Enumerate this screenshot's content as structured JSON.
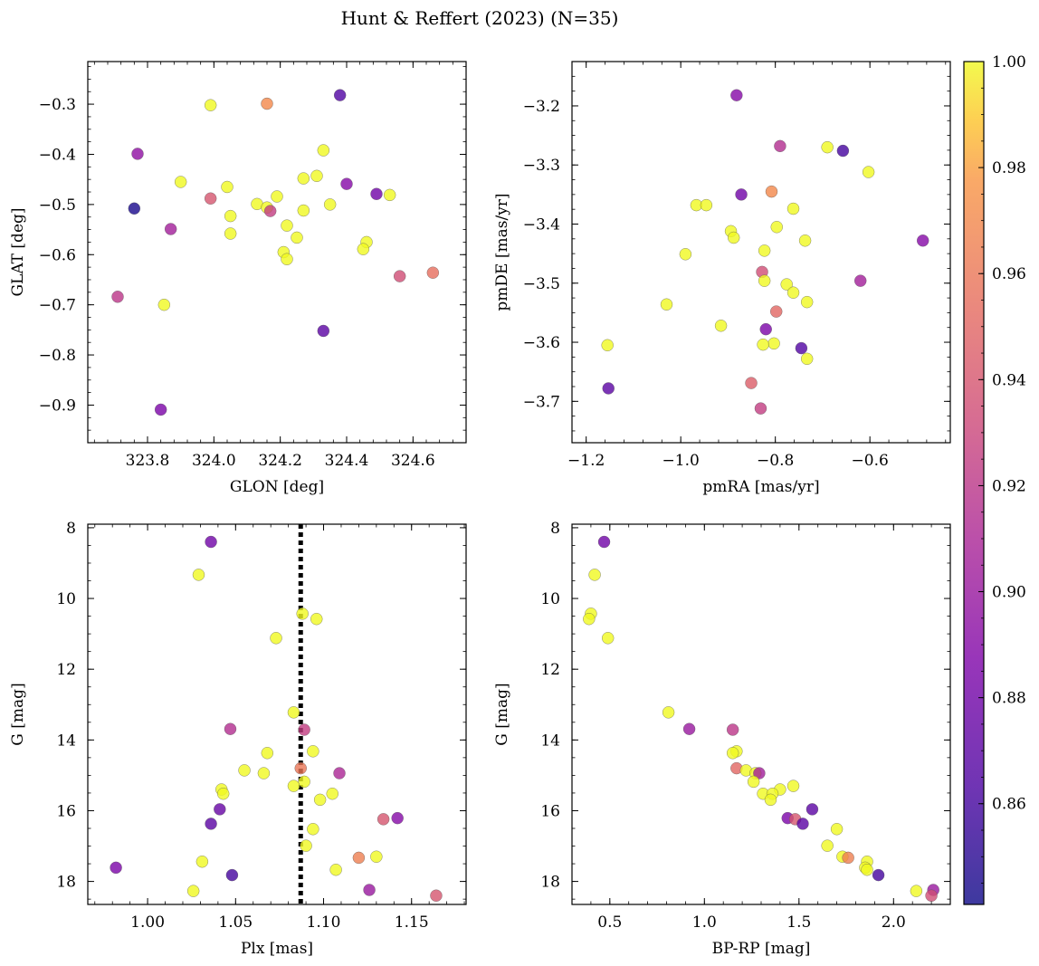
{
  "figure": {
    "title": "Hunt & Reffert (2023) (N=35)"
  },
  "colorbar": {
    "range": [
      0.841,
      1.0
    ],
    "ticks": [
      0.86,
      0.88,
      0.9,
      0.92,
      0.94,
      0.96,
      0.98,
      1.0
    ],
    "tick_labels": [
      "0.86",
      "0.88",
      "0.90",
      "0.92",
      "0.94",
      "0.96",
      "0.98",
      "1.00"
    ],
    "colormap": "plasma"
  },
  "chart_data": [
    {
      "type": "scatter",
      "xlabel": "GLON [deg]",
      "ylabel": "GLAT [deg]",
      "xlim": [
        323.62,
        324.76
      ],
      "ylim": [
        -0.975,
        -0.215
      ],
      "yinvert": false,
      "xticks": [
        323.8,
        324.0,
        324.2,
        324.4,
        324.6
      ],
      "xtick_labels": [
        "323.8",
        "324.0",
        "324.2",
        "324.4",
        "324.6"
      ],
      "yticks": [
        -0.9,
        -0.8,
        -0.7,
        -0.6,
        -0.5,
        -0.4,
        -0.3
      ],
      "ytick_labels": [
        "−0.9",
        "−0.8",
        "−0.7",
        "−0.6",
        "−0.5",
        "−0.4",
        "−0.3"
      ],
      "points": [
        {
          "x": 323.99,
          "y": -0.302,
          "c": 1.0
        },
        {
          "x": 324.16,
          "y": -0.299,
          "c": 0.97
        },
        {
          "x": 324.38,
          "y": -0.282,
          "c": 0.865
        },
        {
          "x": 323.77,
          "y": -0.399,
          "c": 0.895
        },
        {
          "x": 324.33,
          "y": -0.392,
          "c": 1.0
        },
        {
          "x": 323.9,
          "y": -0.455,
          "c": 1.0
        },
        {
          "x": 324.31,
          "y": -0.443,
          "c": 1.0
        },
        {
          "x": 324.27,
          "y": -0.448,
          "c": 1.0
        },
        {
          "x": 324.4,
          "y": -0.459,
          "c": 0.89
        },
        {
          "x": 324.04,
          "y": -0.465,
          "c": 1.0
        },
        {
          "x": 324.49,
          "y": -0.479,
          "c": 0.88
        },
        {
          "x": 324.53,
          "y": -0.481,
          "c": 1.0
        },
        {
          "x": 323.99,
          "y": -0.488,
          "c": 0.94
        },
        {
          "x": 324.19,
          "y": -0.484,
          "c": 1.0
        },
        {
          "x": 324.13,
          "y": -0.499,
          "c": 1.0
        },
        {
          "x": 324.35,
          "y": -0.5,
          "c": 1.0
        },
        {
          "x": 323.76,
          "y": -0.508,
          "c": 0.845
        },
        {
          "x": 324.16,
          "y": -0.506,
          "c": 1.0
        },
        {
          "x": 324.17,
          "y": -0.513,
          "c": 0.925
        },
        {
          "x": 324.27,
          "y": -0.512,
          "c": 1.0
        },
        {
          "x": 324.05,
          "y": -0.523,
          "c": 1.0
        },
        {
          "x": 324.22,
          "y": -0.542,
          "c": 1.0
        },
        {
          "x": 323.87,
          "y": -0.549,
          "c": 0.905
        },
        {
          "x": 324.05,
          "y": -0.558,
          "c": 1.0
        },
        {
          "x": 324.25,
          "y": -0.566,
          "c": 1.0
        },
        {
          "x": 324.46,
          "y": -0.575,
          "c": 1.0
        },
        {
          "x": 324.45,
          "y": -0.589,
          "c": 1.0
        },
        {
          "x": 324.21,
          "y": -0.595,
          "c": 1.0
        },
        {
          "x": 324.22,
          "y": -0.609,
          "c": 1.0
        },
        {
          "x": 324.56,
          "y": -0.643,
          "c": 0.935
        },
        {
          "x": 324.66,
          "y": -0.636,
          "c": 0.955
        },
        {
          "x": 323.71,
          "y": -0.684,
          "c": 0.92
        },
        {
          "x": 323.85,
          "y": -0.7,
          "c": 1.0
        },
        {
          "x": 324.33,
          "y": -0.752,
          "c": 0.87
        },
        {
          "x": 323.84,
          "y": -0.909,
          "c": 0.885
        }
      ]
    },
    {
      "type": "scatter",
      "xlabel": "pmRA [mas/yr]",
      "ylabel": "pmDE [mas/yr]",
      "xlim": [
        -1.23,
        -0.43
      ],
      "ylim": [
        -3.77,
        -3.125
      ],
      "yinvert": false,
      "xticks": [
        -1.2,
        -1.0,
        -0.8,
        -0.6
      ],
      "xtick_labels": [
        "−1.2",
        "−1.0",
        "−0.8",
        "−0.6"
      ],
      "yticks": [
        -3.7,
        -3.6,
        -3.5,
        -3.4,
        -3.3,
        -3.2
      ],
      "ytick_labels": [
        "−3.7",
        "−3.6",
        "−3.5",
        "−3.4",
        "−3.3",
        "−3.2"
      ],
      "points": [
        {
          "x": -0.882,
          "y": -3.182,
          "c": 0.89
        },
        {
          "x": -0.79,
          "y": -3.268,
          "c": 0.915
        },
        {
          "x": -0.69,
          "y": -3.27,
          "c": 1.0
        },
        {
          "x": -0.657,
          "y": -3.276,
          "c": 0.86
        },
        {
          "x": -0.603,
          "y": -3.312,
          "c": 1.0
        },
        {
          "x": -0.808,
          "y": -3.345,
          "c": 0.97
        },
        {
          "x": -0.872,
          "y": -3.35,
          "c": 0.88
        },
        {
          "x": -0.967,
          "y": -3.368,
          "c": 1.0
        },
        {
          "x": -0.946,
          "y": -3.368,
          "c": 1.0
        },
        {
          "x": -0.762,
          "y": -3.374,
          "c": 1.0
        },
        {
          "x": -0.797,
          "y": -3.405,
          "c": 1.0
        },
        {
          "x": -0.894,
          "y": -3.412,
          "c": 1.0
        },
        {
          "x": -0.888,
          "y": -3.423,
          "c": 1.0
        },
        {
          "x": -0.737,
          "y": -3.428,
          "c": 1.0
        },
        {
          "x": -0.488,
          "y": -3.428,
          "c": 0.89
        },
        {
          "x": -0.823,
          "y": -3.445,
          "c": 1.0
        },
        {
          "x": -0.99,
          "y": -3.451,
          "c": 1.0
        },
        {
          "x": -0.828,
          "y": -3.481,
          "c": 0.935
        },
        {
          "x": -0.823,
          "y": -3.496,
          "c": 1.0
        },
        {
          "x": -0.62,
          "y": -3.496,
          "c": 0.905
        },
        {
          "x": -0.776,
          "y": -3.502,
          "c": 1.0
        },
        {
          "x": -0.762,
          "y": -3.516,
          "c": 1.0
        },
        {
          "x": -0.733,
          "y": -3.532,
          "c": 1.0
        },
        {
          "x": -1.03,
          "y": -3.536,
          "c": 1.0
        },
        {
          "x": -0.798,
          "y": -3.548,
          "c": 0.95
        },
        {
          "x": -0.915,
          "y": -3.572,
          "c": 1.0
        },
        {
          "x": -0.82,
          "y": -3.578,
          "c": 0.885
        },
        {
          "x": -0.803,
          "y": -3.602,
          "c": 1.0
        },
        {
          "x": -0.826,
          "y": -3.604,
          "c": 1.0
        },
        {
          "x": -1.155,
          "y": -3.605,
          "c": 1.0
        },
        {
          "x": -0.745,
          "y": -3.61,
          "c": 0.865
        },
        {
          "x": -0.733,
          "y": -3.628,
          "c": 1.0
        },
        {
          "x": -0.851,
          "y": -3.669,
          "c": 0.945
        },
        {
          "x": -1.153,
          "y": -3.678,
          "c": 0.87
        },
        {
          "x": -0.831,
          "y": -3.712,
          "c": 0.925
        }
      ]
    },
    {
      "type": "scatter",
      "xlabel": "Plx [mas]",
      "ylabel": "G [mag]",
      "xlim": [
        0.966,
        1.181
      ],
      "ylim": [
        7.9,
        18.65
      ],
      "yinvert": true,
      "vline": 1.087,
      "xticks": [
        1.0,
        1.05,
        1.1,
        1.15
      ],
      "xtick_labels": [
        "1.00",
        "1.05",
        "1.10",
        "1.15"
      ],
      "yticks": [
        8,
        10,
        12,
        14,
        16,
        18
      ],
      "ytick_labels": [
        "8",
        "10",
        "12",
        "14",
        "16",
        "18"
      ],
      "points": [
        {
          "x": 1.036,
          "y": 8.4,
          "c": 0.88
        },
        {
          "x": 1.029,
          "y": 9.33,
          "c": 1.0
        },
        {
          "x": 1.088,
          "y": 10.43,
          "c": 1.0
        },
        {
          "x": 1.096,
          "y": 10.58,
          "c": 1.0
        },
        {
          "x": 1.073,
          "y": 11.12,
          "c": 1.0
        },
        {
          "x": 1.083,
          "y": 13.22,
          "c": 1.0
        },
        {
          "x": 1.047,
          "y": 13.69,
          "c": 0.915
        },
        {
          "x": 1.089,
          "y": 13.71,
          "c": 0.925
        },
        {
          "x": 1.094,
          "y": 14.32,
          "c": 1.0
        },
        {
          "x": 1.068,
          "y": 14.37,
          "c": 1.0
        },
        {
          "x": 1.087,
          "y": 14.8,
          "c": 0.96
        },
        {
          "x": 1.055,
          "y": 14.86,
          "c": 1.0
        },
        {
          "x": 1.066,
          "y": 14.94,
          "c": 1.0
        },
        {
          "x": 1.109,
          "y": 14.94,
          "c": 0.91
        },
        {
          "x": 1.089,
          "y": 15.18,
          "c": 1.0
        },
        {
          "x": 1.083,
          "y": 15.3,
          "c": 1.0
        },
        {
          "x": 1.042,
          "y": 15.4,
          "c": 1.0
        },
        {
          "x": 1.043,
          "y": 15.52,
          "c": 1.0
        },
        {
          "x": 1.105,
          "y": 15.52,
          "c": 1.0
        },
        {
          "x": 1.098,
          "y": 15.69,
          "c": 1.0
        },
        {
          "x": 1.041,
          "y": 15.96,
          "c": 0.875
        },
        {
          "x": 1.134,
          "y": 16.24,
          "c": 0.94
        },
        {
          "x": 1.142,
          "y": 16.21,
          "c": 0.89
        },
        {
          "x": 1.036,
          "y": 16.37,
          "c": 0.87
        },
        {
          "x": 1.094,
          "y": 16.52,
          "c": 1.0
        },
        {
          "x": 1.09,
          "y": 16.99,
          "c": 1.0
        },
        {
          "x": 1.13,
          "y": 17.3,
          "c": 1.0
        },
        {
          "x": 1.12,
          "y": 17.33,
          "c": 0.965
        },
        {
          "x": 1.031,
          "y": 17.44,
          "c": 1.0
        },
        {
          "x": 0.982,
          "y": 17.61,
          "c": 0.885
        },
        {
          "x": 1.107,
          "y": 17.67,
          "c": 1.0
        },
        {
          "x": 1.048,
          "y": 17.82,
          "c": 0.86
        },
        {
          "x": 1.126,
          "y": 18.24,
          "c": 0.9
        },
        {
          "x": 1.026,
          "y": 18.27,
          "c": 1.0
        },
        {
          "x": 1.164,
          "y": 18.4,
          "c": 0.94
        }
      ]
    },
    {
      "type": "scatter",
      "xlabel": "BP-RP [mag]",
      "ylabel": "G [mag]",
      "xlim": [
        0.3,
        2.3
      ],
      "ylim": [
        7.9,
        18.65
      ],
      "yinvert": true,
      "xticks": [
        0.5,
        1.0,
        1.5,
        2.0
      ],
      "xtick_labels": [
        "0.5",
        "1.0",
        "1.5",
        "2.0"
      ],
      "yticks": [
        8,
        10,
        12,
        14,
        16,
        18
      ],
      "ytick_labels": [
        "8",
        "10",
        "12",
        "14",
        "16",
        "18"
      ],
      "points": [
        {
          "x": 0.47,
          "y": 8.4,
          "c": 0.88
        },
        {
          "x": 0.42,
          "y": 9.33,
          "c": 1.0
        },
        {
          "x": 0.4,
          "y": 10.43,
          "c": 1.0
        },
        {
          "x": 0.39,
          "y": 10.58,
          "c": 1.0
        },
        {
          "x": 0.49,
          "y": 11.12,
          "c": 1.0
        },
        {
          "x": 0.81,
          "y": 13.22,
          "c": 1.0
        },
        {
          "x": 0.92,
          "y": 13.69,
          "c": 0.9
        },
        {
          "x": 1.15,
          "y": 13.71,
          "c": 0.92
        },
        {
          "x": 1.17,
          "y": 14.32,
          "c": 1.0
        },
        {
          "x": 1.15,
          "y": 14.37,
          "c": 1.0
        },
        {
          "x": 1.17,
          "y": 14.8,
          "c": 0.95
        },
        {
          "x": 1.22,
          "y": 14.86,
          "c": 1.0
        },
        {
          "x": 1.27,
          "y": 14.94,
          "c": 1.0
        },
        {
          "x": 1.29,
          "y": 14.94,
          "c": 0.905
        },
        {
          "x": 1.26,
          "y": 15.18,
          "c": 1.0
        },
        {
          "x": 1.47,
          "y": 15.3,
          "c": 1.0
        },
        {
          "x": 1.4,
          "y": 15.4,
          "c": 1.0
        },
        {
          "x": 1.31,
          "y": 15.52,
          "c": 1.0
        },
        {
          "x": 1.36,
          "y": 15.52,
          "c": 1.0
        },
        {
          "x": 1.35,
          "y": 15.69,
          "c": 1.0
        },
        {
          "x": 1.57,
          "y": 15.96,
          "c": 0.87
        },
        {
          "x": 1.44,
          "y": 16.21,
          "c": 0.885
        },
        {
          "x": 1.48,
          "y": 16.24,
          "c": 0.94
        },
        {
          "x": 1.52,
          "y": 16.37,
          "c": 0.87
        },
        {
          "x": 1.7,
          "y": 16.52,
          "c": 1.0
        },
        {
          "x": 1.65,
          "y": 16.99,
          "c": 1.0
        },
        {
          "x": 1.73,
          "y": 17.3,
          "c": 1.0
        },
        {
          "x": 1.76,
          "y": 17.33,
          "c": 0.965
        },
        {
          "x": 1.86,
          "y": 17.44,
          "c": 1.0
        },
        {
          "x": 1.85,
          "y": 17.61,
          "c": 1.0
        },
        {
          "x": 1.86,
          "y": 17.67,
          "c": 1.0
        },
        {
          "x": 1.92,
          "y": 17.82,
          "c": 0.86
        },
        {
          "x": 2.21,
          "y": 18.24,
          "c": 0.9
        },
        {
          "x": 2.12,
          "y": 18.27,
          "c": 1.0
        },
        {
          "x": 2.2,
          "y": 18.4,
          "c": 0.935
        }
      ]
    }
  ]
}
